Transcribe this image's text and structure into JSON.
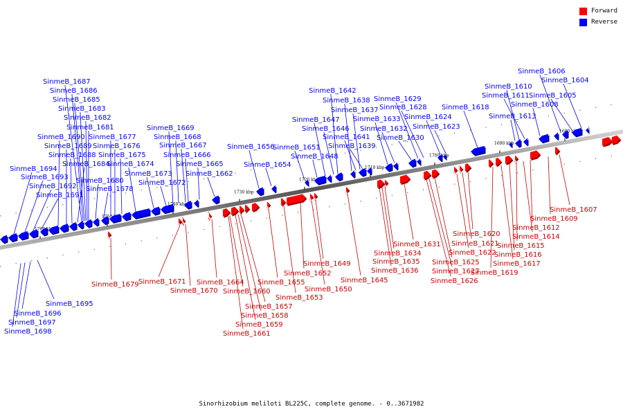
{
  "legend": {
    "forward": {
      "label": "Forward",
      "color": "#ff0000"
    },
    "reverse": {
      "label": "Reverse",
      "color": "#0000ff"
    }
  },
  "caption": "Sinorhizobium meliloti BL225C, complete genome. - 0..3671982",
  "ticks": [
    "1760 kbp",
    "1750 kbp",
    "1740 kbp",
    "1730 kbp",
    "1720 kbp",
    "1710 kbp",
    "1700 kbp",
    "1690 kbp",
    "1680 kbp"
  ],
  "genes": {
    "reverse": [
      "SinmeB_1687",
      "SinmeB_1686",
      "SinmeB_1685",
      "SinmeB_1683",
      "SinmeB_1682",
      "SinmeB_1681",
      "SinmeB_1690",
      "SinmeB_1677",
      "SinmeB_1689",
      "SinmeB_1676",
      "SinmeB_1688",
      "SinmeB_1675",
      "SinmeB_1684",
      "SinmeB_1674",
      "SinmeB_1694",
      "SinmeB_1693",
      "SinmeB_1680",
      "SinmeB_1692",
      "SinmeB_1678",
      "SinmeB_1691",
      "SinmeB_1669",
      "SinmeB_1668",
      "SinmeB_1667",
      "SinmeB_1666",
      "SinmeB_1673",
      "SinmeB_1665",
      "SinmeB_1672",
      "SinmeB_1662",
      "SinmeB_1656",
      "SinmeB_1654",
      "SinmeB_1651",
      "SinmeB_1648",
      "SinmeB_1642",
      "SinmeB_1638",
      "SinmeB_1637",
      "SinmeB_1647",
      "SinmeB_1646",
      "SinmeB_1641",
      "SinmeB_1639",
      "SinmeB_1633",
      "SinmeB_1632",
      "SinmeB_1630",
      "SinmeB_1629",
      "SinmeB_1628",
      "SinmeB_1624",
      "SinmeB_1623",
      "SinmeB_1618",
      "SinmeB_1606",
      "SinmeB_1604",
      "SinmeB_1610",
      "SinmeB_1611",
      "SinmeB_1605",
      "SinmeB_1608",
      "SinmeB_1613",
      "SinmeB_1695",
      "SinmeB_1696",
      "SinmeB_1697",
      "SinmeB_1698"
    ],
    "forward": [
      "SinmeB_1607",
      "SinmeB_1609",
      "SinmeB_1612",
      "SinmeB_1614",
      "SinmeB_1615",
      "SinmeB_1616",
      "SinmeB_1617",
      "SinmeB_1619",
      "SinmeB_1620",
      "SinmeB_1621",
      "SinmeB_1622",
      "SinmeB_1625",
      "SinmeB_1627",
      "SinmeB_1626",
      "SinmeB_1631",
      "SinmeB_1634",
      "SinmeB_1635",
      "SinmeB_1636",
      "SinmeB_1645",
      "SinmeB_1649",
      "SinmeB_1652",
      "SinmeB_1650",
      "SinmeB_1655",
      "SinmeB_1653",
      "SinmeB_1664",
      "SinmeB_1660",
      "SinmeB_1657",
      "SinmeB_1658",
      "SinmeB_1659",
      "SinmeB_1661",
      "SinmeB_1671",
      "SinmeB_1670",
      "SinmeB_1679"
    ]
  }
}
